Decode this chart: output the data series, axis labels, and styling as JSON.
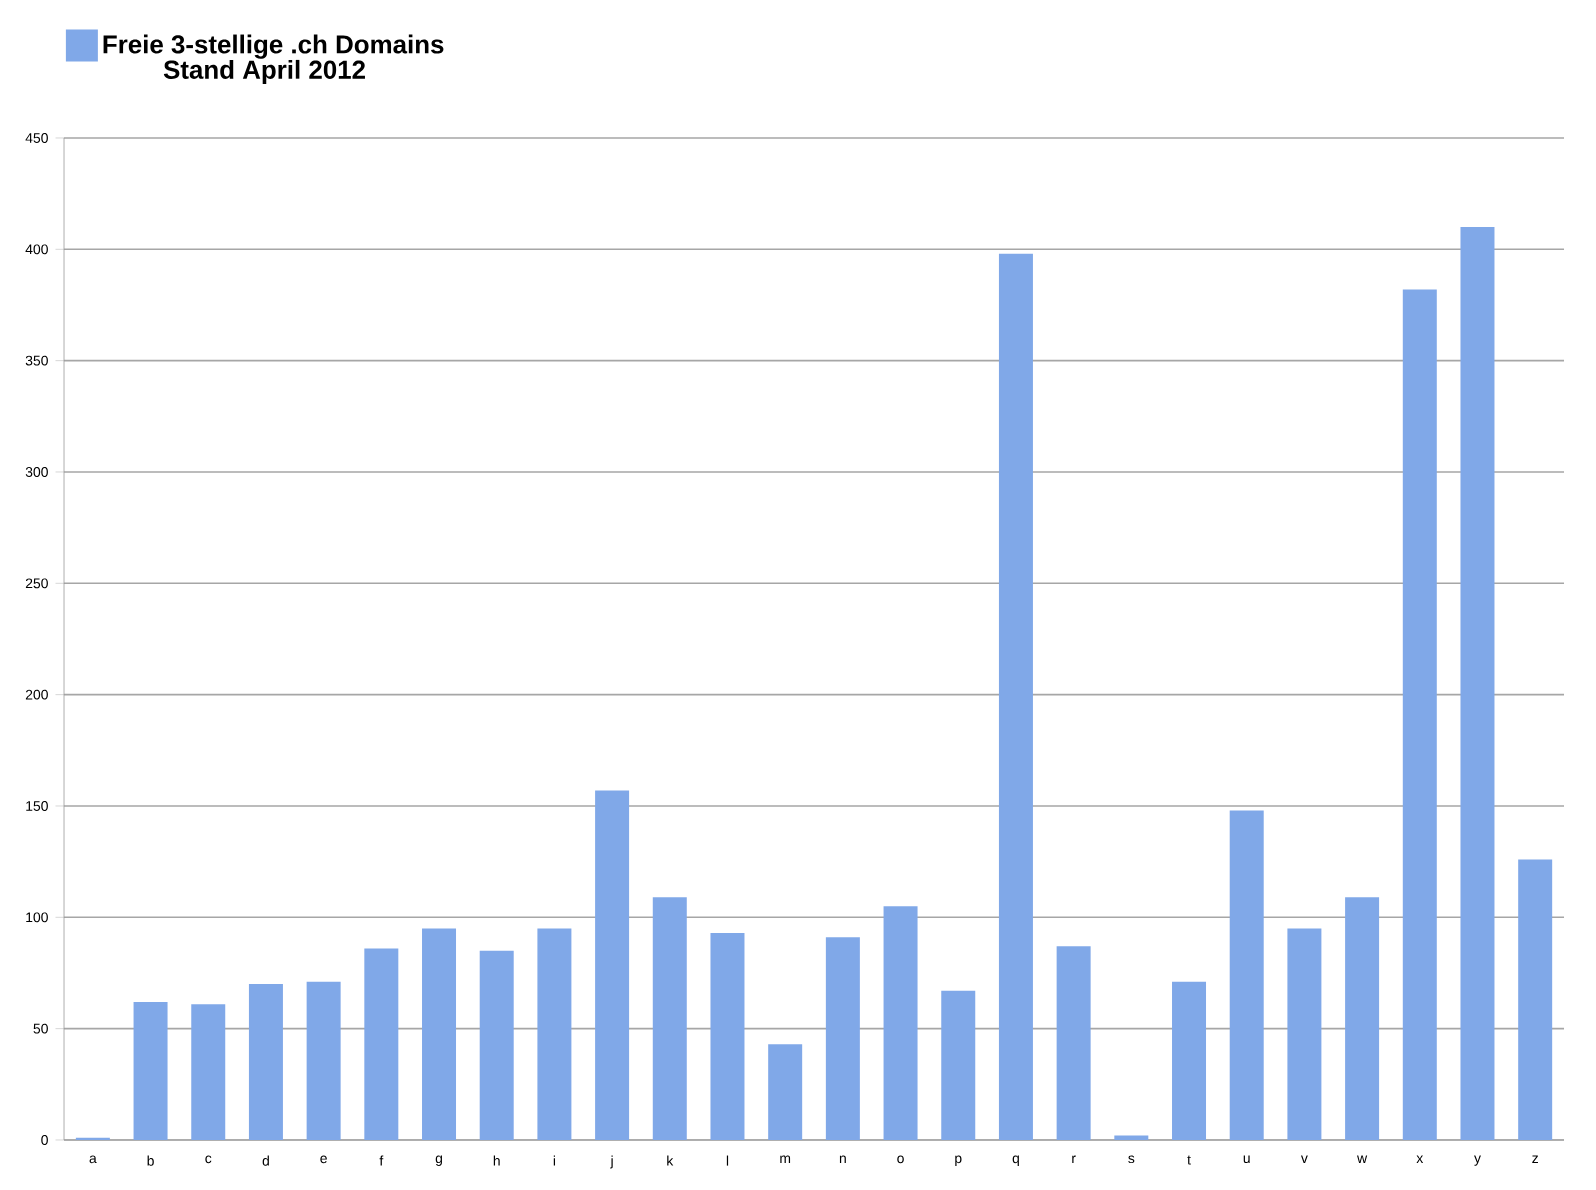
{
  "chart_data": {
    "type": "bar",
    "subtitle": "Stand April 2012",
    "categories": [
      "a",
      "b",
      "c",
      "d",
      "e",
      "f",
      "g",
      "h",
      "i",
      "j",
      "k",
      "l",
      "m",
      "n",
      "o",
      "p",
      "q",
      "r",
      "s",
      "t",
      "u",
      "v",
      "w",
      "x",
      "y",
      "z"
    ],
    "series": [
      {
        "name": "Freie 3-stellige .ch Domains",
        "color": "#80a8e8",
        "values": [
          1,
          62,
          61,
          70,
          71,
          86,
          95,
          85,
          95,
          157,
          109,
          93,
          43,
          91,
          105,
          67,
          398,
          87,
          2,
          71,
          148,
          95,
          109,
          382,
          410,
          126
        ]
      }
    ],
    "ylim": [
      0,
      450
    ],
    "yticks": [
      0,
      50,
      100,
      150,
      200,
      250,
      300,
      350,
      400,
      450
    ],
    "grid": "y",
    "legend": "top left"
  }
}
